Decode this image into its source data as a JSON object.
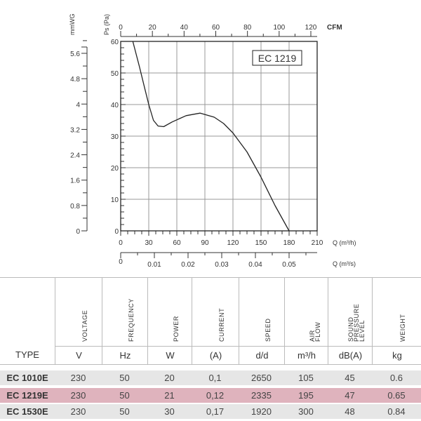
{
  "chart_data": {
    "type": "line",
    "title": "EC 1219",
    "xlabel": "Q (m³/h)",
    "ylabel": "Ps (Pa)",
    "xlim": [
      0,
      210
    ],
    "ylim": [
      0,
      60
    ],
    "grid": true,
    "x_ticks": [
      0,
      30,
      60,
      90,
      120,
      150,
      180,
      210
    ],
    "y_ticks": [
      0,
      10,
      20,
      30,
      40,
      50,
      60
    ],
    "secondary_y": {
      "label": "mmWG",
      "ticks": [
        "0",
        "0.8",
        "1.6",
        "2.4",
        "3.2",
        "4",
        "4.8",
        "5.6"
      ]
    },
    "secondary_x_top": {
      "label": "CFM",
      "ticks": [
        "0",
        "20",
        "40",
        "60",
        "80",
        "100",
        "120"
      ]
    },
    "secondary_x_bottom": {
      "label": "Q (m³/s)",
      "ticks": [
        "0",
        "0.01",
        "0.02",
        "0.03",
        "0.04",
        "0.05"
      ]
    },
    "series": [
      {
        "name": "EC 1219",
        "x": [
          13,
          20,
          25,
          30,
          35,
          40,
          46,
          55,
          70,
          85,
          100,
          110,
          120,
          135,
          150,
          165,
          180
        ],
        "y": [
          60,
          52,
          46,
          40,
          35,
          33.2,
          33,
          34.5,
          36.5,
          37.3,
          36,
          34,
          31,
          25,
          17,
          8,
          0
        ]
      }
    ]
  },
  "table": {
    "type_header": "TYPE",
    "columns": [
      {
        "label": "VOLTAGE",
        "unit": "V"
      },
      {
        "label": "FREQUENCY",
        "unit": "Hz"
      },
      {
        "label": "POWER",
        "unit": "W"
      },
      {
        "label": "CURRENT",
        "unit": "(A)"
      },
      {
        "label": "SPEED",
        "unit": "d/d"
      },
      {
        "label": "AIR FLOW",
        "unit": "m³/h"
      },
      {
        "label": "SOUND\nPRESSURE\nLEVEL",
        "unit": "dB(A)"
      },
      {
        "label": "WEIGHT",
        "unit": "kg"
      }
    ],
    "rows": [
      {
        "type": "EC 1010E",
        "values": [
          "230",
          "50",
          "20",
          "0,1",
          "2650",
          "105",
          "45",
          "0.6"
        ],
        "highlight": false
      },
      {
        "type": "EC 1219E",
        "values": [
          "230",
          "50",
          "21",
          "0,12",
          "2335",
          "195",
          "47",
          "0.65"
        ],
        "highlight": true
      },
      {
        "type": "EC 1530E",
        "values": [
          "230",
          "50",
          "30",
          "0,17",
          "1920",
          "300",
          "48",
          "0.84"
        ],
        "highlight": false
      }
    ],
    "colors": {
      "row": "#e6e6e6",
      "highlight": "#dfb3bd"
    }
  }
}
